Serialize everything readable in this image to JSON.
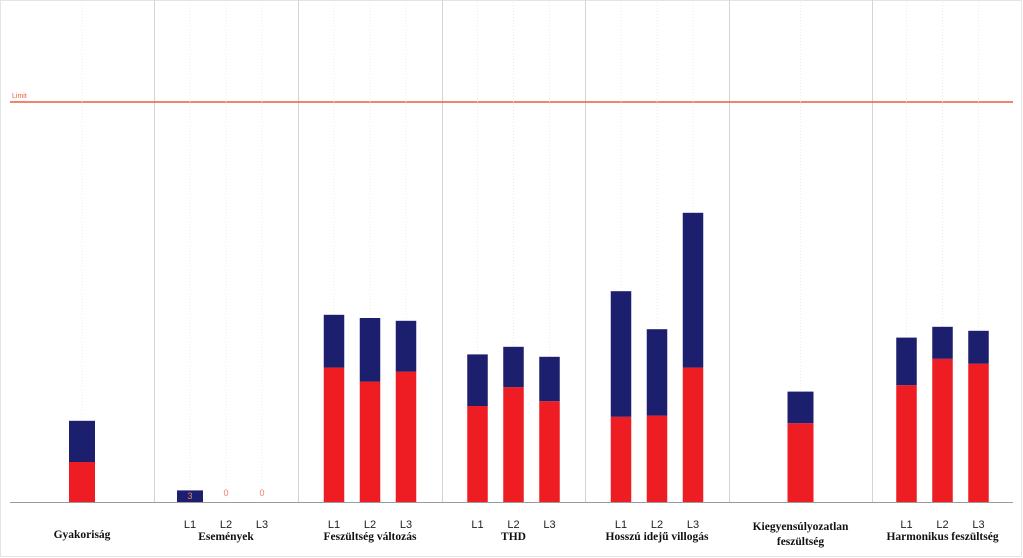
{
  "colors": {
    "bottom": "#ee1c23",
    "top": "#1c1f6e",
    "limit": "#f05a3a",
    "grid": "#d4d4d4",
    "zero_label": "#f08070"
  },
  "chart_data": {
    "type": "bar",
    "stacked": true,
    "ylim": [
      0,
      100
    ],
    "limit": {
      "label": "Limit",
      "value": 100
    },
    "groups": [
      {
        "label": [
          "Gyakoriság"
        ],
        "bars": [
          {
            "tick": "",
            "bottom": 10,
            "top": 10.3
          }
        ]
      },
      {
        "label": [
          "Események"
        ],
        "bars": [
          {
            "tick": "L1",
            "bottom": 0,
            "top": 2.9,
            "value_label": "3"
          },
          {
            "tick": "L2",
            "bottom": 0,
            "top": 0,
            "value_label": "0"
          },
          {
            "tick": "L3",
            "bottom": 0,
            "top": 0,
            "value_label": "0"
          }
        ]
      },
      {
        "label": [
          "Feszültség változás"
        ],
        "bars": [
          {
            "tick": "L1",
            "bottom": 33.6,
            "top": 13.2
          },
          {
            "tick": "L2",
            "bottom": 30.1,
            "top": 15.9
          },
          {
            "tick": "L3",
            "bottom": 32.6,
            "top": 12.7
          }
        ]
      },
      {
        "label": [
          "THD"
        ],
        "bars": [
          {
            "tick": "L1",
            "bottom": 24.0,
            "top": 12.9
          },
          {
            "tick": "L2",
            "bottom": 28.7,
            "top": 10.1
          },
          {
            "tick": "L3",
            "bottom": 25.2,
            "top": 11.1
          }
        ]
      },
      {
        "label": [
          "Hosszú idejű villogás"
        ],
        "bars": [
          {
            "tick": "L1",
            "bottom": 21.3,
            "top": 31.4
          },
          {
            "tick": "L2",
            "bottom": 21.6,
            "top": 21.6
          },
          {
            "tick": "L3",
            "bottom": 33.6,
            "top": 38.7
          }
        ]
      },
      {
        "label": [
          "Kiegyensúlyozatlan",
          "feszültség"
        ],
        "bars": [
          {
            "tick": "",
            "bottom": 19.7,
            "top": 7.9
          }
        ]
      },
      {
        "label": [
          "Harmonikus feszültség"
        ],
        "bars": [
          {
            "tick": "L1",
            "bottom": 29.2,
            "top": 11.9
          },
          {
            "tick": "L2",
            "bottom": 35.8,
            "top": 8.0
          },
          {
            "tick": "L3",
            "bottom": 34.6,
            "top": 8.2
          }
        ]
      }
    ]
  }
}
